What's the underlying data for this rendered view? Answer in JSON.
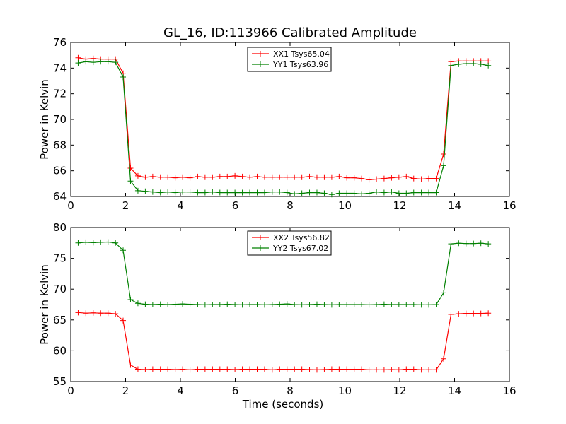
{
  "figure": {
    "title": "GL_16, ID:113966 Calibrated Amplitude"
  },
  "chart_data": [
    {
      "type": "line",
      "title": "GL_16, ID:113966 Calibrated Amplitude",
      "xlabel": "",
      "ylabel": "Power in Kelvin",
      "xlim": [
        0,
        16
      ],
      "ylim": [
        64,
        76
      ],
      "xticks": [
        "0",
        "2",
        "4",
        "6",
        "8",
        "10",
        "12",
        "14",
        "16"
      ],
      "yticks": [
        "64",
        "66",
        "68",
        "70",
        "72",
        "74",
        "76"
      ],
      "grid": false,
      "legend_position": "upper-center",
      "x": [
        0.27,
        0.55,
        0.82,
        1.09,
        1.36,
        1.63,
        1.91,
        2.18,
        2.45,
        2.72,
        2.99,
        3.27,
        3.54,
        3.81,
        4.08,
        4.35,
        4.63,
        4.9,
        5.17,
        5.44,
        5.71,
        5.99,
        6.26,
        6.53,
        6.8,
        7.07,
        7.35,
        7.62,
        7.89,
        8.16,
        8.43,
        8.71,
        8.98,
        9.25,
        9.52,
        9.79,
        10.07,
        10.34,
        10.61,
        10.88,
        11.15,
        11.43,
        11.7,
        11.97,
        12.24,
        12.51,
        12.79,
        13.06,
        13.33,
        13.6,
        13.87,
        14.15,
        14.42,
        14.69,
        14.96,
        15.23
      ],
      "series": [
        {
          "name": "XX1 Tsys65.04",
          "color": "#ff0000",
          "values": [
            74.8,
            74.7,
            74.75,
            74.7,
            74.7,
            74.7,
            73.6,
            66.2,
            65.6,
            65.5,
            65.55,
            65.5,
            65.5,
            65.45,
            65.5,
            65.45,
            65.55,
            65.5,
            65.5,
            65.55,
            65.55,
            65.6,
            65.55,
            65.5,
            65.55,
            65.5,
            65.5,
            65.5,
            65.5,
            65.5,
            65.5,
            65.55,
            65.5,
            65.5,
            65.5,
            65.55,
            65.45,
            65.45,
            65.4,
            65.3,
            65.35,
            65.4,
            65.45,
            65.5,
            65.55,
            65.4,
            65.35,
            65.4,
            65.4,
            67.3,
            74.5,
            74.55,
            74.55,
            74.55,
            74.55,
            74.55
          ]
        },
        {
          "name": "YY1 Tsys63.96",
          "color": "#008000",
          "values": [
            74.4,
            74.5,
            74.45,
            74.5,
            74.5,
            74.45,
            73.3,
            65.2,
            64.45,
            64.4,
            64.35,
            64.3,
            64.35,
            64.3,
            64.35,
            64.35,
            64.3,
            64.3,
            64.35,
            64.3,
            64.3,
            64.3,
            64.3,
            64.3,
            64.3,
            64.3,
            64.35,
            64.35,
            64.3,
            64.2,
            64.25,
            64.3,
            64.3,
            64.25,
            64.15,
            64.25,
            64.25,
            64.25,
            64.2,
            64.25,
            64.35,
            64.3,
            64.35,
            64.25,
            64.25,
            64.3,
            64.3,
            64.3,
            64.3,
            66.4,
            74.2,
            74.3,
            74.35,
            74.35,
            74.3,
            74.2
          ]
        }
      ]
    },
    {
      "type": "line",
      "title": "",
      "xlabel": "Time (seconds)",
      "ylabel": "Power in Kelvin",
      "xlim": [
        0,
        16
      ],
      "ylim": [
        55,
        80
      ],
      "xticks": [
        "0",
        "2",
        "4",
        "6",
        "8",
        "10",
        "12",
        "14",
        "16"
      ],
      "yticks": [
        "55",
        "60",
        "65",
        "70",
        "75",
        "80"
      ],
      "grid": false,
      "legend_position": "upper-center",
      "x": [
        0.27,
        0.55,
        0.82,
        1.09,
        1.36,
        1.63,
        1.91,
        2.18,
        2.45,
        2.72,
        2.99,
        3.27,
        3.54,
        3.81,
        4.08,
        4.35,
        4.63,
        4.9,
        5.17,
        5.44,
        5.71,
        5.99,
        6.26,
        6.53,
        6.8,
        7.07,
        7.35,
        7.62,
        7.89,
        8.16,
        8.43,
        8.71,
        8.98,
        9.25,
        9.52,
        9.79,
        10.07,
        10.34,
        10.61,
        10.88,
        11.15,
        11.43,
        11.7,
        11.97,
        12.24,
        12.51,
        12.79,
        13.06,
        13.33,
        13.6,
        13.87,
        14.15,
        14.42,
        14.69,
        14.96,
        15.23
      ],
      "series": [
        {
          "name": "XX2 Tsys56.82",
          "color": "#ff0000",
          "values": [
            66.2,
            66.1,
            66.15,
            66.1,
            66.1,
            66.0,
            64.9,
            57.7,
            57.0,
            56.95,
            57.0,
            57.0,
            57.0,
            56.95,
            57.0,
            56.9,
            57.0,
            57.0,
            57.0,
            57.0,
            57.0,
            56.95,
            57.0,
            57.0,
            57.0,
            57.0,
            56.9,
            57.0,
            57.0,
            57.0,
            57.0,
            56.95,
            56.9,
            56.95,
            57.0,
            57.0,
            57.0,
            57.0,
            57.0,
            56.9,
            56.9,
            56.9,
            56.95,
            56.9,
            57.0,
            57.0,
            56.9,
            56.9,
            56.9,
            58.7,
            65.9,
            66.0,
            66.05,
            66.05,
            66.05,
            66.1
          ]
        },
        {
          "name": "YY2 Tsys67.02",
          "color": "#008000",
          "values": [
            77.5,
            77.6,
            77.55,
            77.6,
            77.65,
            77.5,
            76.3,
            68.3,
            67.7,
            67.55,
            67.5,
            67.55,
            67.5,
            67.55,
            67.6,
            67.55,
            67.5,
            67.45,
            67.5,
            67.5,
            67.55,
            67.5,
            67.45,
            67.5,
            67.5,
            67.45,
            67.5,
            67.55,
            67.6,
            67.5,
            67.45,
            67.5,
            67.55,
            67.5,
            67.45,
            67.5,
            67.5,
            67.5,
            67.5,
            67.45,
            67.5,
            67.55,
            67.5,
            67.5,
            67.5,
            67.5,
            67.45,
            67.45,
            67.5,
            69.4,
            77.35,
            77.45,
            77.4,
            77.4,
            77.45,
            77.35
          ]
        }
      ]
    }
  ]
}
